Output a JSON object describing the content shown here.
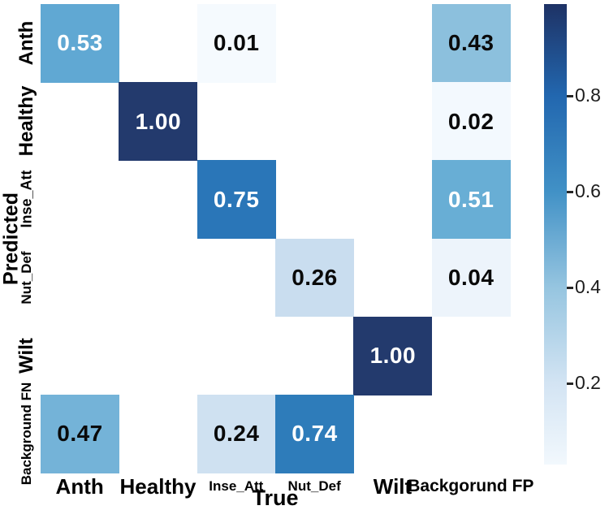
{
  "chart_data": {
    "type": "heatmap",
    "title": "",
    "xlabel": "True",
    "ylabel": "Predicted",
    "x_categories": [
      "Anth",
      "Healthy",
      "Inse_Att",
      "Nut_Def",
      "Wilt",
      "Backgorund FP"
    ],
    "y_categories": [
      "Anth",
      "Healthy",
      "Inse_Att",
      "Nut_Def",
      "Wilt",
      "Background FN"
    ],
    "colormap": "Blues",
    "value_range": [
      0.01,
      1.0
    ],
    "grid": "off",
    "cells": [
      {
        "row": 0,
        "col": 0,
        "value": 0.53,
        "label": "0.53",
        "color": "#60a8d3",
        "text_color": "#ffffff"
      },
      {
        "row": 0,
        "col": 2,
        "value": 0.01,
        "label": "0.01",
        "color": "#f5fafe",
        "text_color": "#0a0a0a"
      },
      {
        "row": 0,
        "col": 5,
        "value": 0.43,
        "label": "0.43",
        "color": "#8cc0dd",
        "text_color": "#0a0a0a"
      },
      {
        "row": 1,
        "col": 1,
        "value": 1.0,
        "label": "1.00",
        "color": "#233a6d",
        "text_color": "#ffffff"
      },
      {
        "row": 1,
        "col": 5,
        "value": 0.02,
        "label": "0.02",
        "color": "#f3f9fe",
        "text_color": "#0a0a0a"
      },
      {
        "row": 2,
        "col": 2,
        "value": 0.75,
        "label": "0.75",
        "color": "#2a76b8",
        "text_color": "#ffffff"
      },
      {
        "row": 2,
        "col": 5,
        "value": 0.51,
        "label": "0.51",
        "color": "#68aed5",
        "text_color": "#ffffff"
      },
      {
        "row": 3,
        "col": 3,
        "value": 0.26,
        "label": "0.26",
        "color": "#c9ddef",
        "text_color": "#0a0a0a"
      },
      {
        "row": 3,
        "col": 5,
        "value": 0.04,
        "label": "0.04",
        "color": "#edf4fb",
        "text_color": "#0a0a0a"
      },
      {
        "row": 4,
        "col": 4,
        "value": 1.0,
        "label": "1.00",
        "color": "#233a6d",
        "text_color": "#ffffff"
      },
      {
        "row": 5,
        "col": 0,
        "value": 0.47,
        "label": "0.47",
        "color": "#74b3d8",
        "text_color": "#0a0a0a"
      },
      {
        "row": 5,
        "col": 2,
        "value": 0.24,
        "label": "0.24",
        "color": "#cfe1f1",
        "text_color": "#0a0a0a"
      },
      {
        "row": 5,
        "col": 3,
        "value": 0.74,
        "label": "0.74",
        "color": "#2e7cba",
        "text_color": "#ffffff"
      }
    ],
    "colorbar": {
      "position": "right",
      "ticks": [
        0.8,
        0.6,
        0.4,
        0.2
      ],
      "tick_labels": [
        "0.8",
        "0.6",
        "0.4",
        "0.2"
      ],
      "gradient": [
        {
          "pos": 0,
          "color": "#1e3265"
        },
        {
          "pos": 19.9,
          "color": "#2267af"
        },
        {
          "pos": 40.7,
          "color": "#4191c6"
        },
        {
          "pos": 61.6,
          "color": "#96c5e0"
        },
        {
          "pos": 82.4,
          "color": "#d3e4f3"
        },
        {
          "pos": 100,
          "color": "#f2f8fd"
        }
      ]
    }
  }
}
